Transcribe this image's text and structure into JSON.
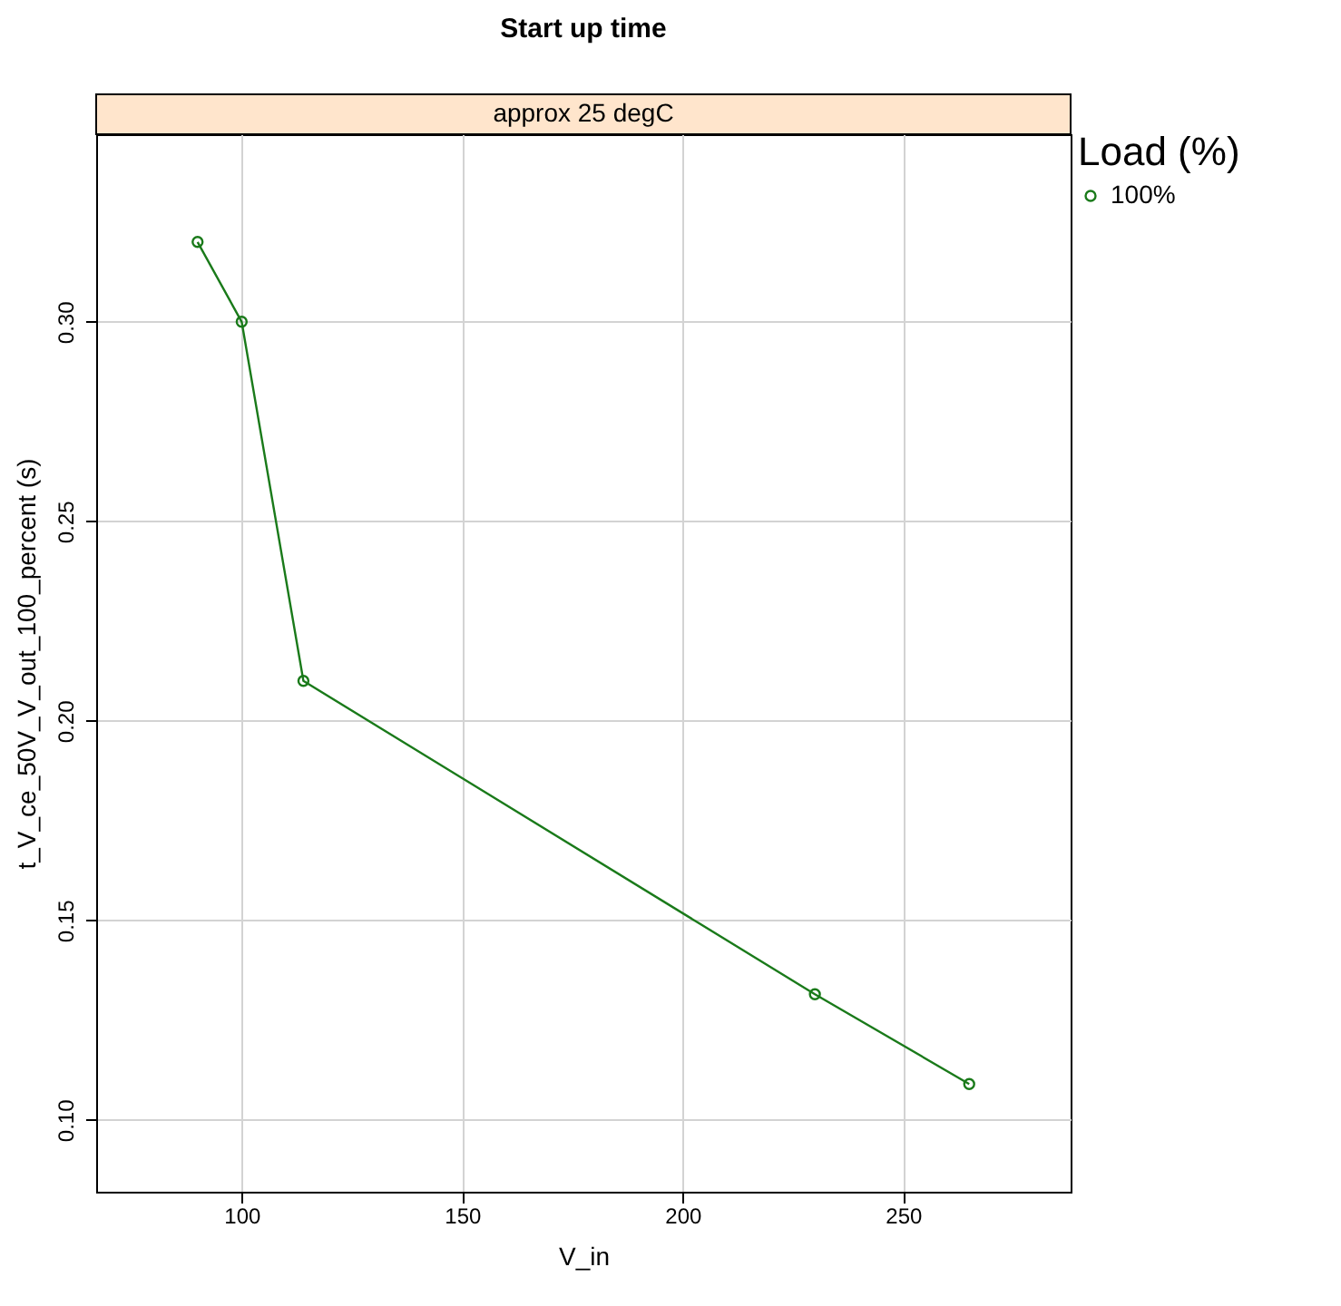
{
  "chart_data": {
    "type": "line",
    "title": "Start up time",
    "subtitle": "approx 25 degC",
    "xlabel": "V_in",
    "ylabel": "t_V_ce_50V_V_out_100_percent (s)",
    "legend_title": "Load (%)",
    "x": [
      90,
      100,
      114,
      230,
      265
    ],
    "series": [
      {
        "name": "100%",
        "color": "#1a7a1a",
        "values": [
          0.32,
          0.3,
          0.21,
          0.1315,
          0.109
        ]
      }
    ],
    "xlim": [
      67,
      288
    ],
    "xticks": [
      100,
      150,
      200,
      250
    ],
    "ylim": [
      0.082,
      0.347
    ],
    "yticks": [
      {
        "value": 0.1,
        "label": "0.10"
      },
      0.15,
      {
        "value": 0.2,
        "label": "0.20"
      },
      0.25,
      {
        "value": 0.3,
        "label": "0.30"
      }
    ],
    "grid": true,
    "legend": "right",
    "marker": "circle",
    "line_style": "solid"
  }
}
